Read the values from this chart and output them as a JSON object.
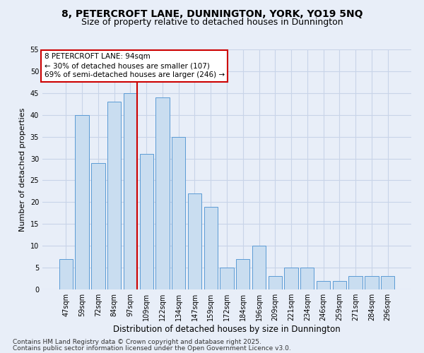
{
  "title1": "8, PETERCROFT LANE, DUNNINGTON, YORK, YO19 5NQ",
  "title2": "Size of property relative to detached houses in Dunnington",
  "xlabel": "Distribution of detached houses by size in Dunnington",
  "ylabel": "Number of detached properties",
  "categories": [
    "47sqm",
    "59sqm",
    "72sqm",
    "84sqm",
    "97sqm",
    "109sqm",
    "122sqm",
    "134sqm",
    "147sqm",
    "159sqm",
    "172sqm",
    "184sqm",
    "196sqm",
    "209sqm",
    "221sqm",
    "234sqm",
    "246sqm",
    "259sqm",
    "271sqm",
    "284sqm",
    "296sqm"
  ],
  "values": [
    7,
    40,
    29,
    43,
    45,
    31,
    44,
    35,
    22,
    19,
    5,
    7,
    10,
    3,
    5,
    5,
    2,
    2,
    3,
    3,
    3
  ],
  "bar_color": "#c9ddf0",
  "bar_edge_color": "#5b9bd5",
  "red_line_index": 4,
  "red_line_label": "8 PETERCROFT LANE: 94sqm",
  "annotation_line1": "← 30% of detached houses are smaller (107)",
  "annotation_line2": "69% of semi-detached houses are larger (246) →",
  "annotation_box_color": "white",
  "annotation_box_edge": "#cc0000",
  "vline_color": "#cc0000",
  "ylim": [
    0,
    55
  ],
  "yticks": [
    0,
    5,
    10,
    15,
    20,
    25,
    30,
    35,
    40,
    45,
    50,
    55
  ],
  "grid_color": "#c8d4e8",
  "footnote1": "Contains HM Land Registry data © Crown copyright and database right 2025.",
  "footnote2": "Contains public sector information licensed under the Open Government Licence v3.0.",
  "bg_color": "#e8eef8",
  "title1_fontsize": 10,
  "title2_fontsize": 9,
  "xlabel_fontsize": 8.5,
  "ylabel_fontsize": 8,
  "tick_fontsize": 7,
  "annotation_fontsize": 7.5,
  "footnote_fontsize": 6.5
}
